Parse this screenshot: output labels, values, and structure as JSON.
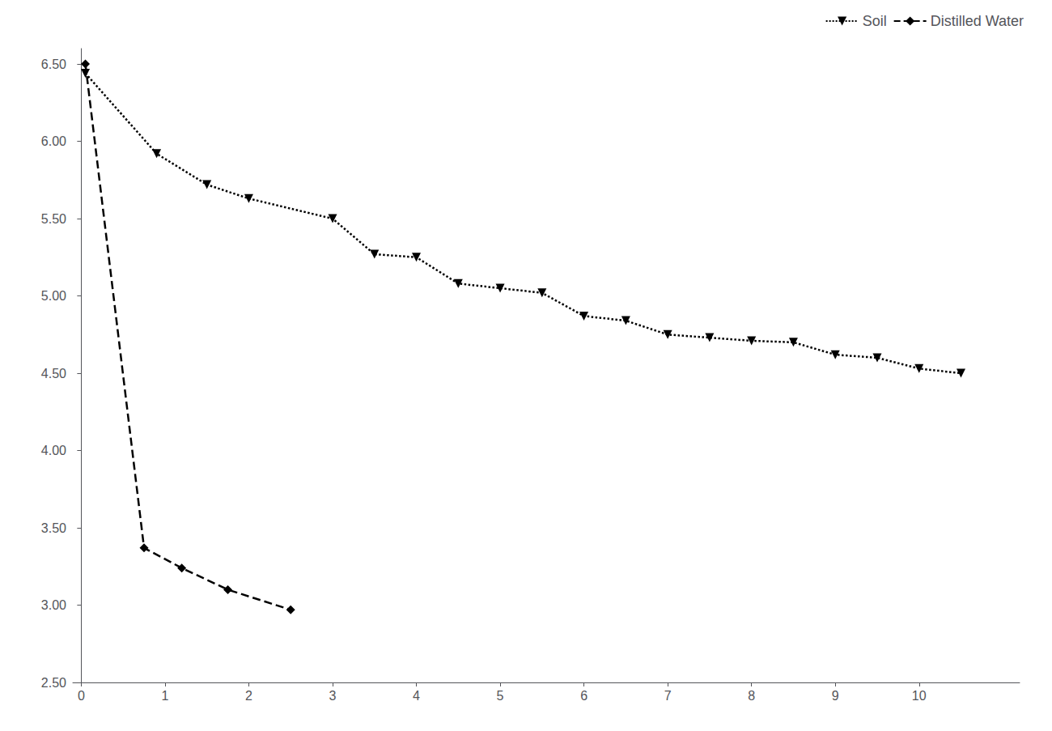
{
  "chart_data": {
    "type": "line",
    "series": [
      {
        "name": "Soil",
        "color": "#000000",
        "marker": "triangle-down",
        "line_style": "dotted",
        "x": [
          0.05,
          0.9,
          1.5,
          2.0,
          3.0,
          3.5,
          4.0,
          4.5,
          5.0,
          5.5,
          6.0,
          6.5,
          7.0,
          7.5,
          8.0,
          8.5,
          9.0,
          9.5,
          10.0,
          10.5
        ],
        "values": [
          6.44,
          5.92,
          5.72,
          5.63,
          5.5,
          5.27,
          5.25,
          5.08,
          5.05,
          5.02,
          4.87,
          4.84,
          4.75,
          4.73,
          4.71,
          4.7,
          4.62,
          4.6,
          4.53,
          4.5
        ]
      },
      {
        "name": "Distilled Water",
        "color": "#000000",
        "marker": "diamond",
        "line_style": "dashed",
        "x": [
          0.05,
          0.75,
          1.2,
          1.75,
          2.5
        ],
        "values": [
          6.5,
          3.37,
          3.24,
          3.1,
          2.97
        ]
      }
    ],
    "xlim": [
      -0.1,
      11.2
    ],
    "xticks": [
      0,
      1,
      2,
      3,
      4,
      5,
      6,
      7,
      8,
      9,
      10
    ],
    "ylim": [
      2.5,
      6.6
    ],
    "yticks": [
      {
        "value": 2.5,
        "label": "2.50"
      },
      {
        "value": 3.0,
        "label": "3.00"
      },
      {
        "value": 3.5,
        "label": "3.50"
      },
      {
        "value": 4.0,
        "label": "4.00"
      },
      {
        "value": 4.5,
        "label": "4.50"
      },
      {
        "value": 5.0,
        "label": "5.00"
      },
      {
        "value": 5.5,
        "label": "5.50"
      },
      {
        "value": 6.0,
        "label": "6.00"
      },
      {
        "value": 6.5,
        "label": "6.50"
      }
    ],
    "grid": false,
    "legend": "upper right"
  }
}
